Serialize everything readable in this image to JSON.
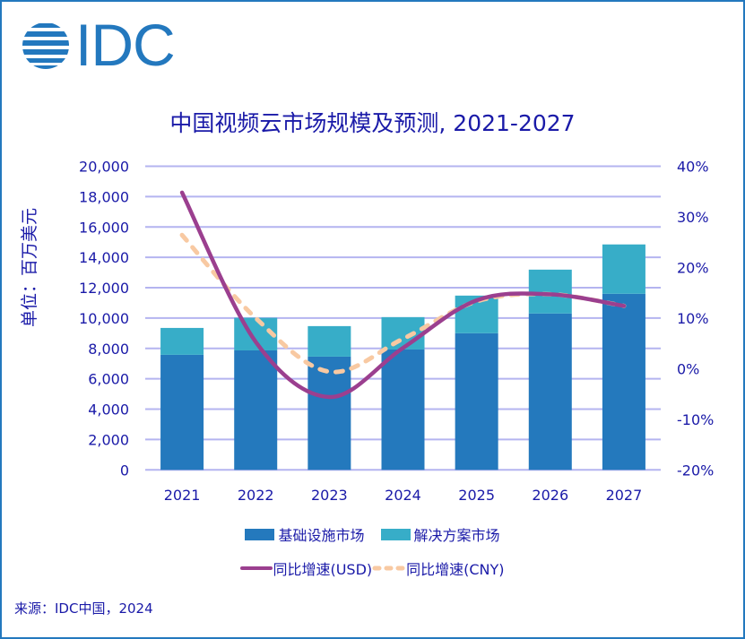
{
  "logo": {
    "text": "IDC",
    "color": "#2378be"
  },
  "title": "中国视频云市场规模及预测, 2021-2027",
  "source": "来源：IDC中国，2024",
  "chart_data": {
    "type": "bar",
    "stacked": true,
    "title": "中国视频云市场规模及预测, 2021-2027",
    "ylabel": "单位：百万美元",
    "categories": [
      "2021",
      "2022",
      "2023",
      "2024",
      "2025",
      "2026",
      "2027"
    ],
    "ylim": [
      0,
      20000
    ],
    "yticks": [
      "0",
      "2,000",
      "4,000",
      "6,000",
      "8,000",
      "10,000",
      "12,000",
      "14,000",
      "16,000",
      "18,000",
      "20,000"
    ],
    "y2lim": [
      -20,
      40
    ],
    "y2ticks": [
      "-20%",
      "-10%",
      "0%",
      "10%",
      "20%",
      "30%",
      "40%"
    ],
    "grid": true,
    "legend_position": "bottom",
    "series": [
      {
        "name": "基础设施市场",
        "type": "bar",
        "axis": "left",
        "color": "#2479bd",
        "values": [
          7580,
          7870,
          7460,
          7930,
          9000,
          10300,
          11600
        ]
      },
      {
        "name": "解决方案市场",
        "type": "bar",
        "axis": "left",
        "color": "#37adc8",
        "values": [
          1770,
          2150,
          2010,
          2130,
          2480,
          2890,
          3250
        ]
      },
      {
        "name": "同比增速(USD)",
        "type": "line",
        "axis": "right",
        "color": "#9b3f8f",
        "dashed": false,
        "values": [
          34.8,
          5.3,
          -5.6,
          4.1,
          13.5,
          14.7,
          12.4
        ]
      },
      {
        "name": "同比增速(CNY)",
        "type": "line",
        "axis": "right",
        "color": "#f8c9a2",
        "dashed": true,
        "values": [
          26.4,
          10.0,
          -0.6,
          5.9,
          13.3,
          14.7,
          12.4
        ]
      }
    ]
  }
}
